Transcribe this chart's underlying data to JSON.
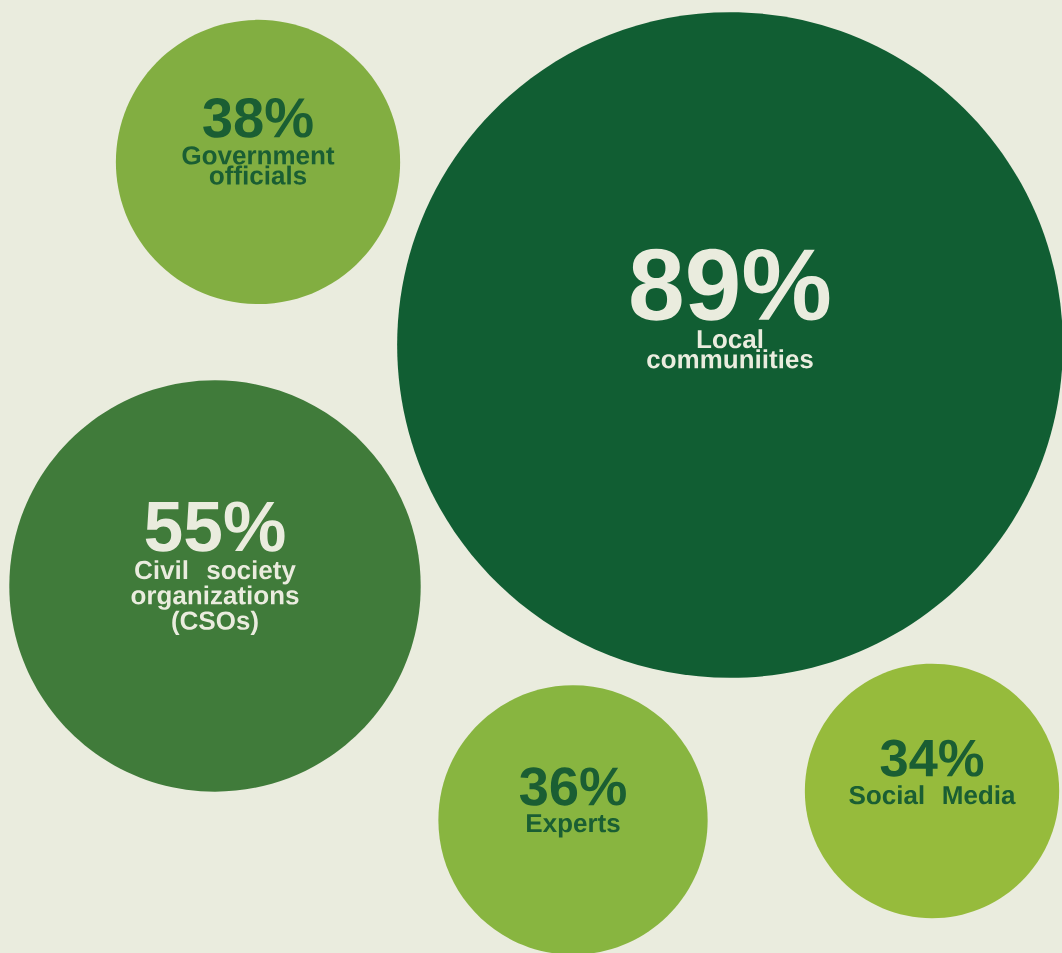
{
  "chart_data": {
    "type": "other",
    "categories": [
      "Government officials",
      "Local communiities",
      "Civil society organizations (CSOs)",
      "Experts",
      "Social Media"
    ],
    "values": [
      38,
      89,
      55,
      36,
      34
    ],
    "value_labels": [
      "38%",
      "89%",
      "55%",
      "36%",
      "34%"
    ],
    "colors": [
      "#82ae41",
      "#115e33",
      "#407b3a",
      "#88b540",
      "#96bb3c"
    ]
  }
}
